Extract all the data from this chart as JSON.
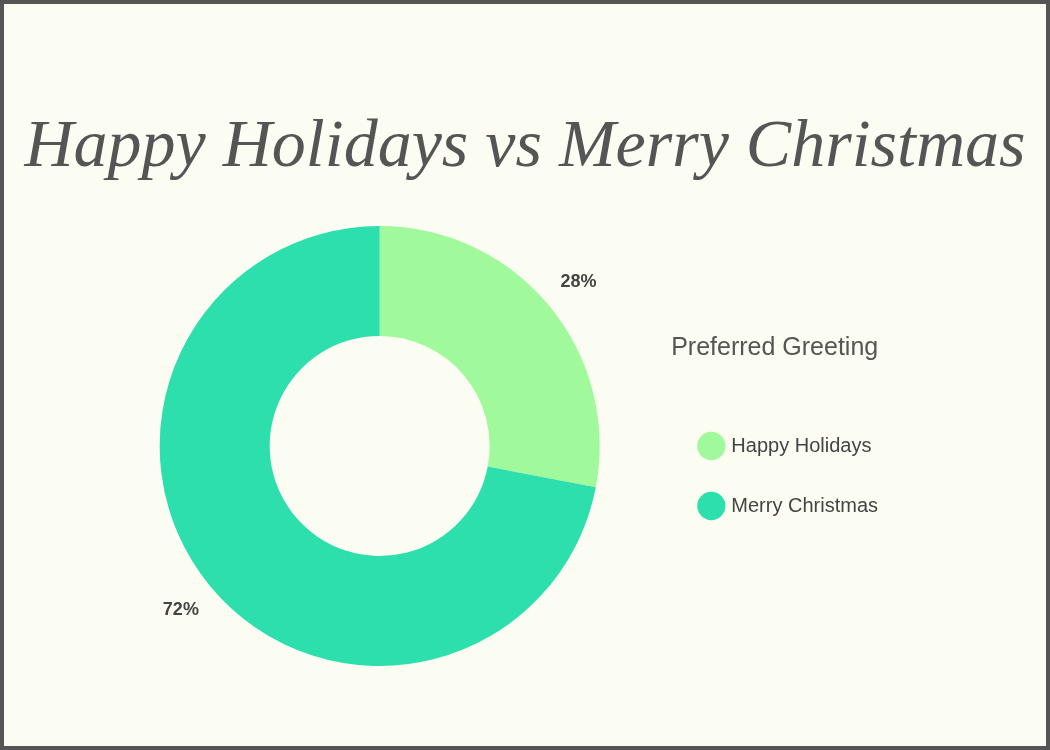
{
  "chart_data": {
    "type": "donut",
    "title": "Happy Holidays vs Merry Christmas",
    "legend_title": "Preferred Greeting",
    "categories": [
      "Happy Holidays",
      "Merry Christmas"
    ],
    "values": [
      28,
      72
    ],
    "colors": [
      "#a0f99a",
      "#2edfae"
    ],
    "value_labels": [
      "28%",
      "72%"
    ],
    "legend": "right"
  }
}
